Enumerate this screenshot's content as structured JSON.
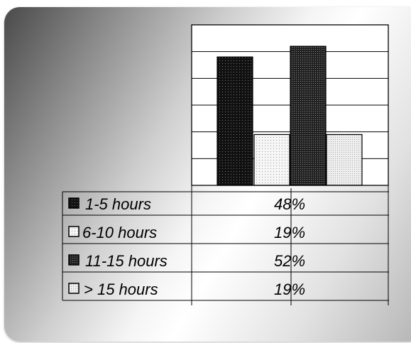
{
  "chart_data": {
    "type": "bar",
    "title": "",
    "xlabel": "",
    "ylabel": "",
    "ylim": [
      0,
      60
    ],
    "grid": true,
    "legend": "table-left",
    "series": [
      {
        "name": "1-5 hours",
        "value": 48,
        "label": "48%",
        "pattern": "dark-dots"
      },
      {
        "name": "6-10 hours",
        "value": 19,
        "label": "19%",
        "pattern": "light-dots"
      },
      {
        "name": "11-15 hours",
        "value": 52,
        "label": "52%",
        "pattern": "dark-grid"
      },
      {
        "name": "> 15 hours",
        "value": 19,
        "label": "19%",
        "pattern": "light-fine"
      }
    ]
  },
  "colors": {
    "panel_dark": "#4a4a4a",
    "panel_light": "#ffffff",
    "line": "#000000"
  }
}
